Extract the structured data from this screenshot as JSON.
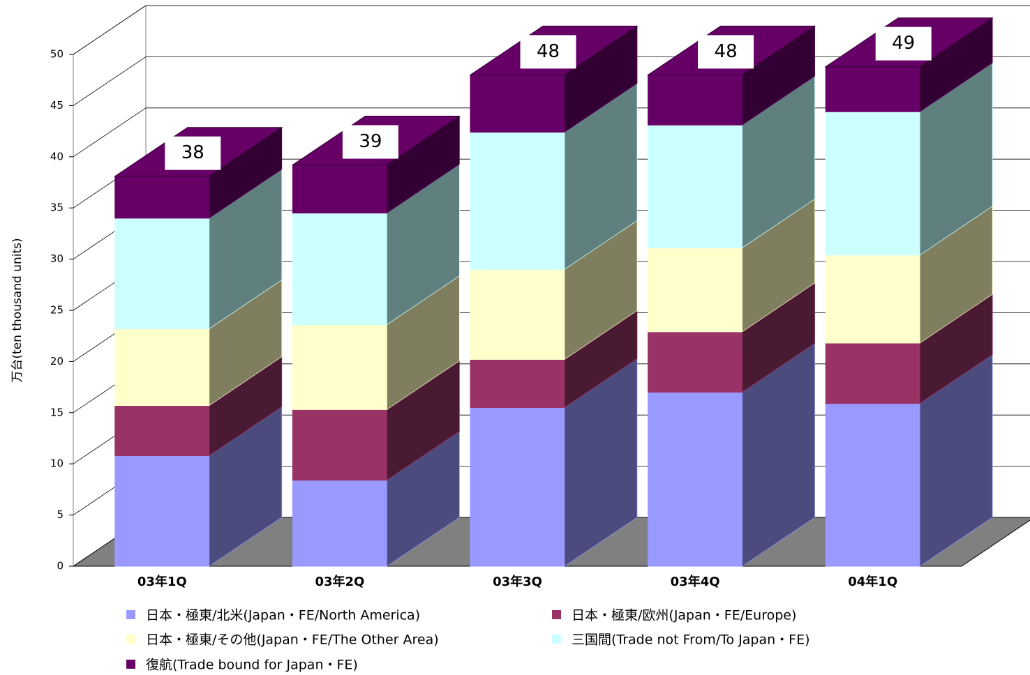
{
  "chart_data": {
    "type": "bar3d_stacked",
    "y_label": "万台(ten thousand units)",
    "categories": [
      "03年1Q",
      "03年2Q",
      "03年3Q",
      "03年4Q",
      "04年1Q"
    ],
    "series": [
      {
        "name": "日本・極東/北米(Japan・FE/North America)",
        "color": "#9999ff",
        "side_color": "#4b4b7d",
        "values": [
          10.8,
          8.4,
          15.5,
          17.0,
          15.9
        ]
      },
      {
        "name": "日本・極東/欧州(Japan・FE/Europe)",
        "color": "#993366",
        "side_color": "#4a1a32",
        "values": [
          4.9,
          6.9,
          4.7,
          5.9,
          5.9
        ]
      },
      {
        "name": "日本・極東/その他(Japan・FE/The Other Area)",
        "color": "#ffffcc",
        "side_color": "#7f7f60",
        "values": [
          7.5,
          8.3,
          8.8,
          8.2,
          8.6
        ]
      },
      {
        "name": "三国間(Trade not From/To Japan・FE)",
        "color": "#ccffff",
        "side_color": "#608080",
        "values": [
          10.8,
          10.9,
          13.4,
          12.0,
          14.0
        ]
      },
      {
        "name": "復航(Trade bound for Japan・FE)",
        "color": "#660066",
        "side_color": "#330033",
        "values": [
          4.1,
          4.7,
          5.6,
          4.9,
          4.4
        ]
      }
    ],
    "totals": [
      38,
      39,
      48,
      48,
      49
    ],
    "ylim": [
      0,
      50
    ],
    "yticks": [
      0,
      5,
      10,
      15,
      20,
      25,
      30,
      35,
      40,
      45,
      50
    ],
    "grid": true
  }
}
